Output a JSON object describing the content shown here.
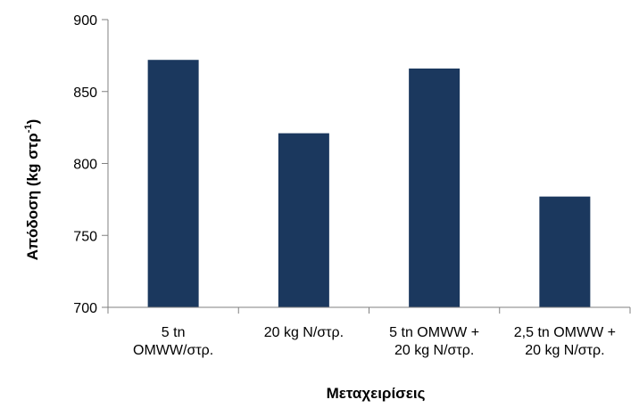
{
  "chart_data": {
    "type": "bar",
    "categories": [
      [
        "5 tn",
        "OMWW/στρ."
      ],
      [
        "20 kg N/στρ."
      ],
      [
        "5 tn OMWW +",
        "20 kg N/στρ."
      ],
      [
        "2,5 tn OMWW +",
        "20 kg N/στρ."
      ]
    ],
    "values": [
      872,
      821,
      866,
      777
    ],
    "xlabel": "Μεταχειρίσεις",
    "ylabel": {
      "main": "Απόδοση (kg στρ",
      "sup": "-1",
      "close": ")"
    },
    "ylim": [
      700,
      900
    ],
    "yticks": [
      "700",
      "750",
      "800",
      "850",
      "900"
    ],
    "grid": false,
    "legend": "none",
    "bar_color": "#1b385e",
    "axis_color": "#808080"
  }
}
